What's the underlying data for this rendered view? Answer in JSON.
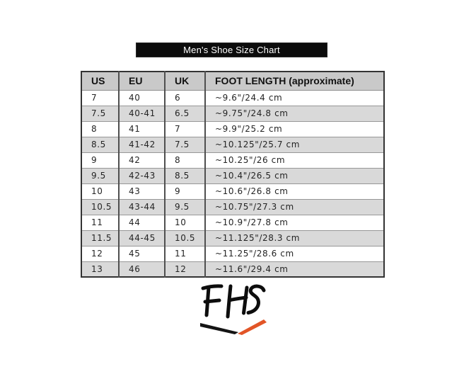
{
  "title_bar": {
    "text": "Men's Shoe Size Chart",
    "bg_color": "#0c0c0c",
    "text_color": "#ffffff"
  },
  "table": {
    "headers": [
      "US",
      "EU",
      "UK",
      "FOOT LENGTH (approximate)"
    ],
    "rows": [
      [
        "7",
        "40",
        "6",
        "~9.6\"/24.4 cm"
      ],
      [
        "7.5",
        "40-41",
        "6.5",
        "~9.75\"/24.8 cm"
      ],
      [
        "8",
        "41",
        "7",
        "~9.9\"/25.2 cm"
      ],
      [
        "8.5",
        "41-42",
        "7.5",
        "~10.125\"/25.7 cm"
      ],
      [
        "9",
        "42",
        "8",
        "~10.25\"/26 cm"
      ],
      [
        "9.5",
        "42-43",
        "8.5",
        "~10.4\"/26.5 cm"
      ],
      [
        "10",
        "43",
        "9",
        "~10.6\"/26.8 cm"
      ],
      [
        "10.5",
        "43-44",
        "9.5",
        "~10.75\"/27.3 cm"
      ],
      [
        "11",
        "44",
        "10",
        "~10.9\"/27.8 cm"
      ],
      [
        "11.5",
        "44-45",
        "10.5",
        "~11.125\"/28.3 cm"
      ],
      [
        "12",
        "45",
        "11",
        "~11.25\"/28.6 cm"
      ],
      [
        "13",
        "46",
        "12",
        "~11.6\"/29.4 cm"
      ]
    ],
    "header_bg": "#c9c9c9",
    "alt_row_bg": "#d9d9d9",
    "row_bg": "#ffffff"
  },
  "logo": {
    "text": "FHS",
    "letter_color": "#0d0d0d",
    "swoosh_black": "#141414",
    "swoosh_orange": "#e25527"
  }
}
